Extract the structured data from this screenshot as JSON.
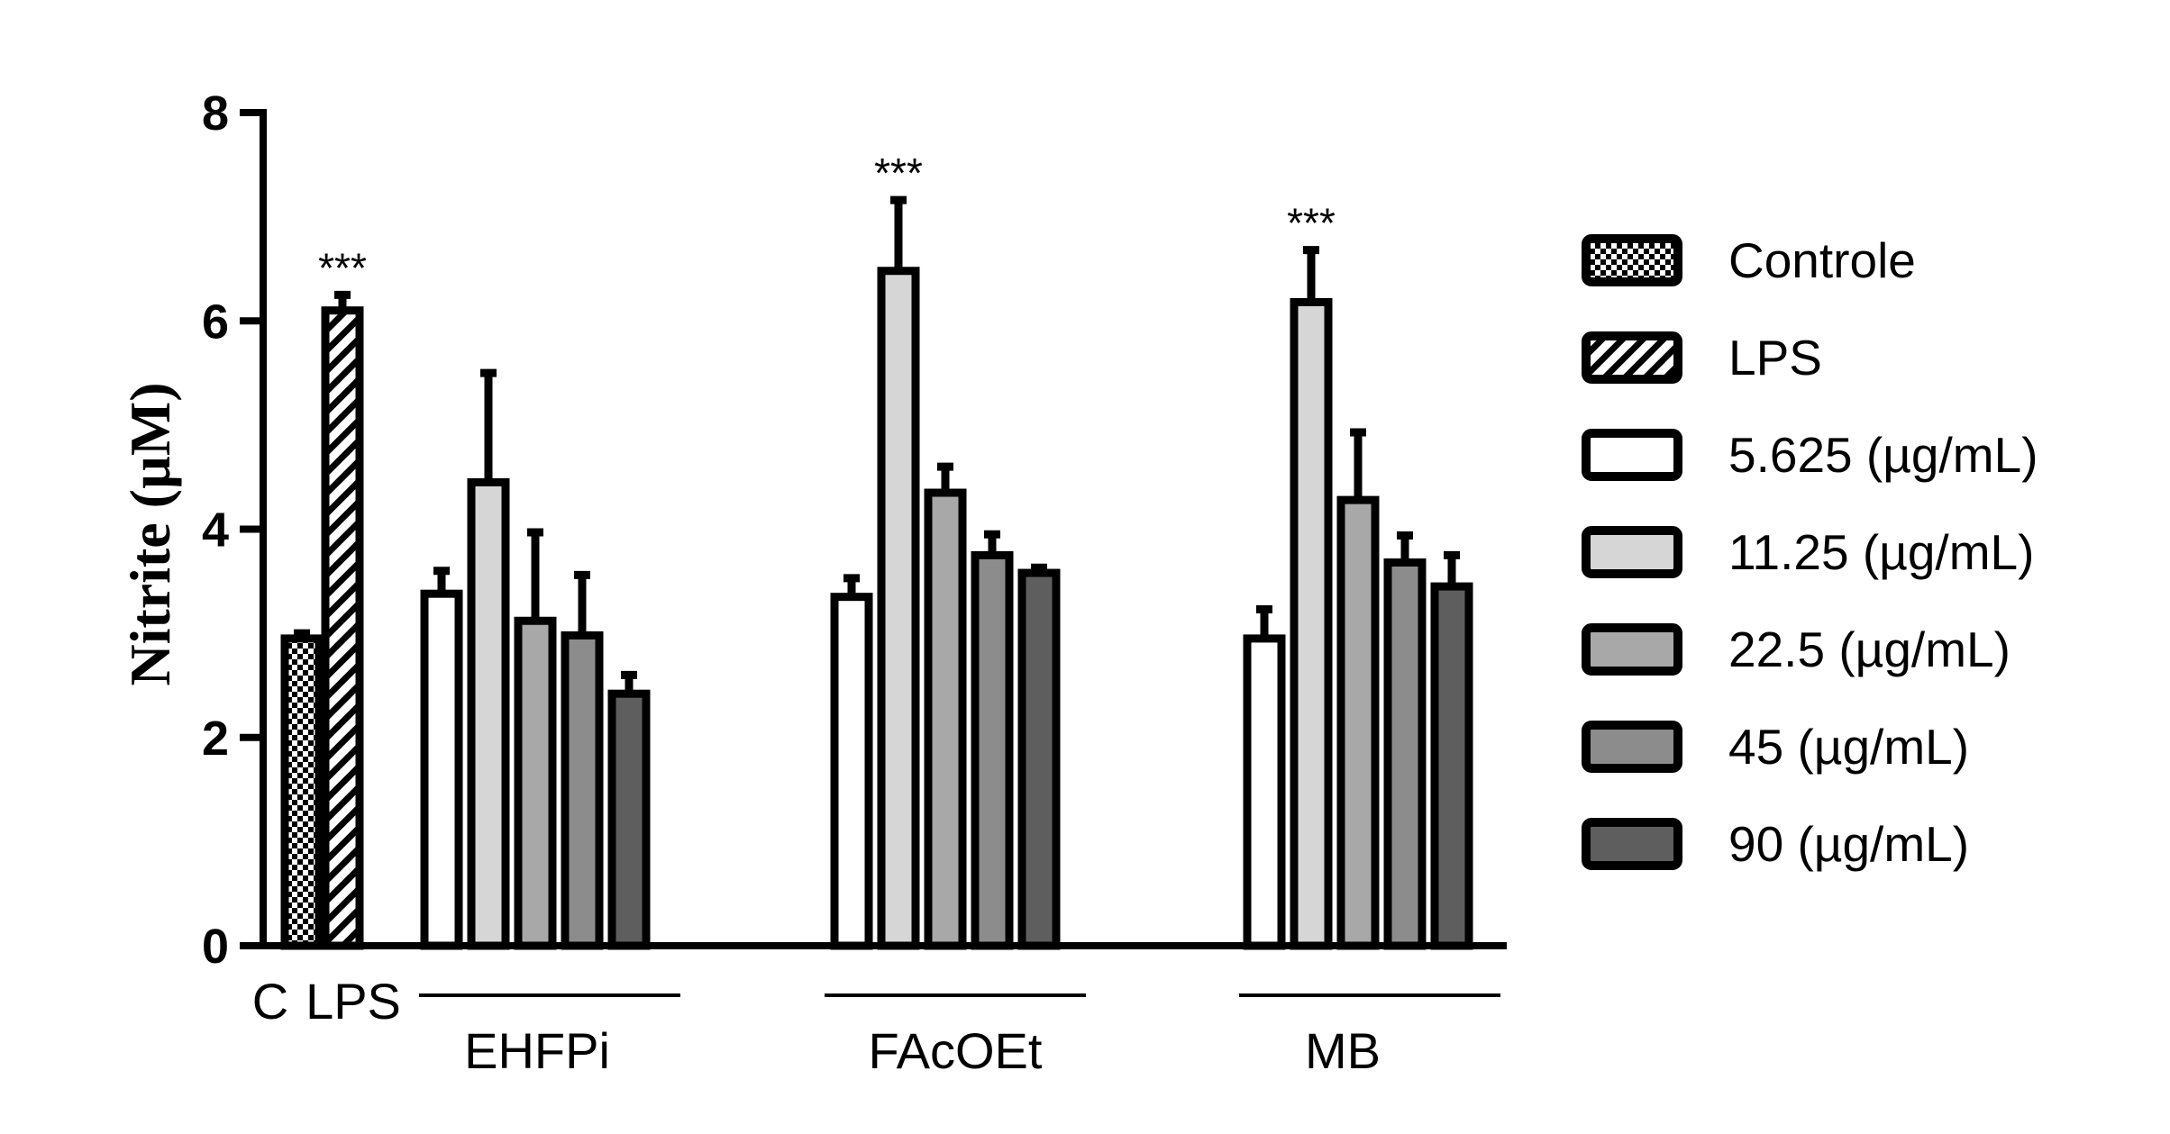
{
  "chart_data": {
    "type": "bar",
    "ylabel": "Nitrite (µM)",
    "ylim": [
      0,
      8
    ],
    "yticks": [
      "0",
      "2",
      "4",
      "6",
      "8"
    ],
    "groups": [
      {
        "label": "C",
        "bars": [
          {
            "series": "Controle",
            "value": 2.95,
            "error": 0.05
          }
        ]
      },
      {
        "label": "LPS",
        "bars": [
          {
            "series": "LPS",
            "value": 6.1,
            "error": 0.15,
            "sig": "***"
          }
        ]
      },
      {
        "label": "EHFPi",
        "bars": [
          {
            "series": "5.625 (µg/mL)",
            "value": 3.38,
            "error": 0.22
          },
          {
            "series": "11.25  (µg/mL)",
            "value": 4.45,
            "error": 1.05
          },
          {
            "series": "22.5  (µg/mL)",
            "value": 3.12,
            "error": 0.85
          },
          {
            "series": "45 (µg/mL)",
            "value": 2.98,
            "error": 0.58
          },
          {
            "series": "90 (µg/mL)",
            "value": 2.42,
            "error": 0.18
          }
        ]
      },
      {
        "label": "FAcOEt",
        "bars": [
          {
            "series": "5.625 (µg/mL)",
            "value": 3.35,
            "error": 0.18
          },
          {
            "series": "11.25  (µg/mL)",
            "value": 6.48,
            "error": 0.68,
            "sig": "***"
          },
          {
            "series": "22.5  (µg/mL)",
            "value": 4.35,
            "error": 0.25
          },
          {
            "series": "45 (µg/mL)",
            "value": 3.75,
            "error": 0.2
          },
          {
            "series": "90 (µg/mL)",
            "value": 3.58,
            "error": 0.05
          }
        ]
      },
      {
        "label": "MB",
        "bars": [
          {
            "series": "5.625 (µg/mL)",
            "value": 2.95,
            "error": 0.28
          },
          {
            "series": "11.25  (µg/mL)",
            "value": 6.18,
            "error": 0.5,
            "sig": "***"
          },
          {
            "series": "22.5  (µg/mL)",
            "value": 4.28,
            "error": 0.65
          },
          {
            "series": "45 (µg/mL)",
            "value": 3.68,
            "error": 0.26
          },
          {
            "series": "90 (µg/mL)",
            "value": 3.45,
            "error": 0.3
          }
        ]
      }
    ],
    "legend": {
      "position": "right",
      "entries": [
        {
          "label": "Controle",
          "pattern": "checker"
        },
        {
          "label": "LPS",
          "pattern": "hatch"
        },
        {
          "label": "5.625 (µg/mL)",
          "fill": "#ffffff"
        },
        {
          "label": "11.25  (µg/mL)",
          "fill": "#d6d6d6"
        },
        {
          "label": "22.5  (µg/mL)",
          "fill": "#a8a8a8"
        },
        {
          "label": "45 (µg/mL)",
          "fill": "#8c8c8c"
        },
        {
          "label": "90 (µg/mL)",
          "fill": "#5e5e5e"
        }
      ]
    }
  }
}
